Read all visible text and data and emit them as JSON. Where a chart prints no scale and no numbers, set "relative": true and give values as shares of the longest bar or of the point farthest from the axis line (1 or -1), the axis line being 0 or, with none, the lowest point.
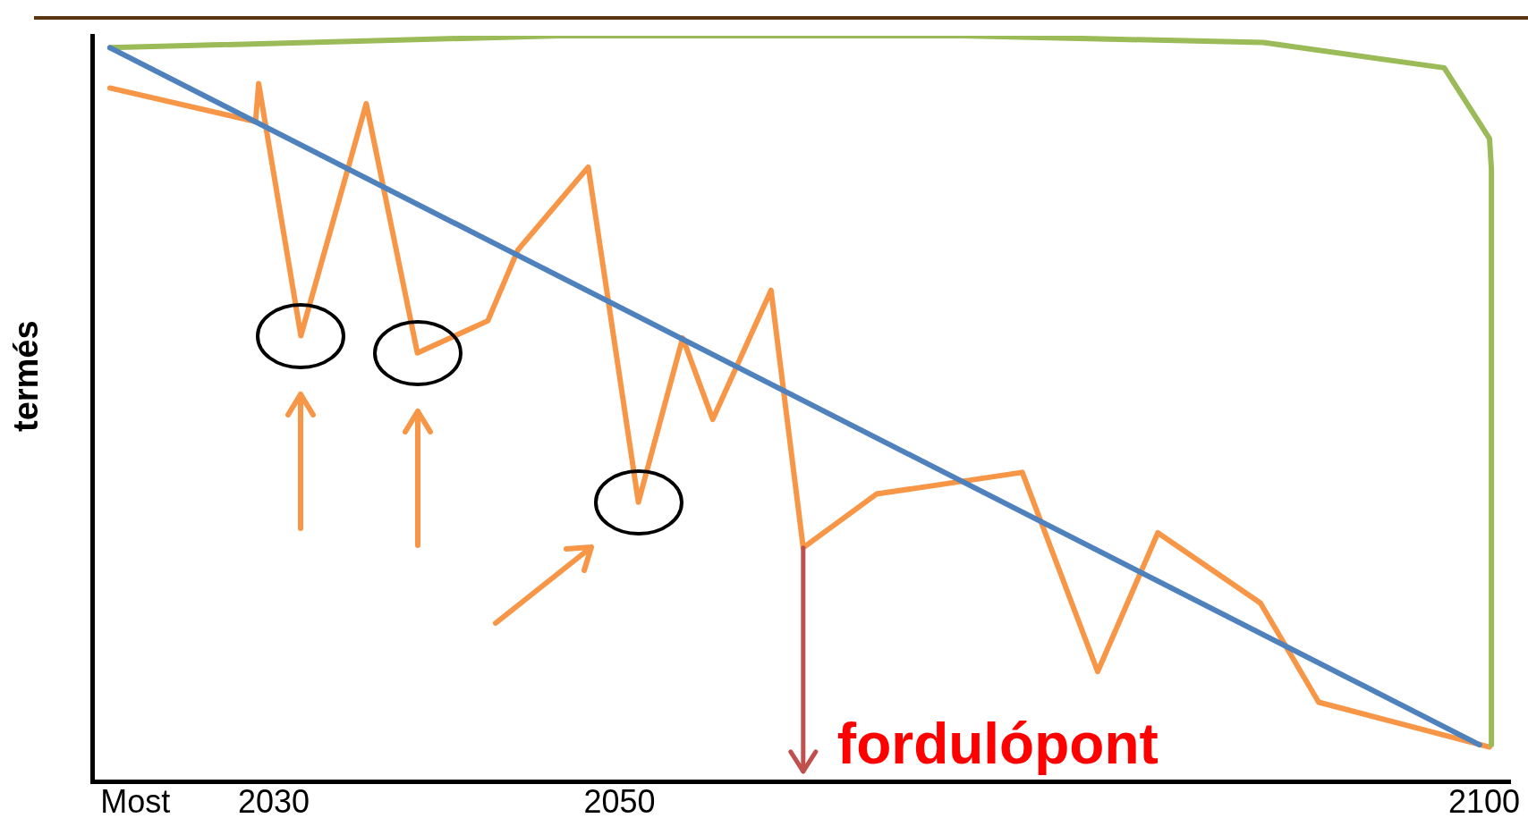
{
  "chart_data": {
    "type": "line",
    "relative": true,
    "ylabel": "termés",
    "xlim": [
      2019.5,
      2101.5
    ],
    "xticks": [
      {
        "value": 2022,
        "label": "Most"
      },
      2030,
      2050,
      2100
    ],
    "grid": false,
    "legend": false,
    "marker": "none",
    "line_style": "solid",
    "series": [
      {
        "color": "#4f81bd",
        "x": [
          2020.53,
          2099.73
        ],
        "values": [
          0.984,
          0.05
        ]
      },
      {
        "color": "#9bbb59",
        "x": [
          2020.53,
          2046.56,
          2069.8,
          2087.23,
          2097.69,
          2100.31,
          2100.42,
          2100.42
        ],
        "values": [
          0.984,
          1.0,
          1.0,
          0.991,
          0.957,
          0.862,
          0.821,
          0.05
        ]
      },
      {
        "color": "#f79646",
        "x": [
          2020.53,
          2028.95,
          2029.13,
          2031.57,
          2035.35,
          2038.31,
          2042.38,
          2044.12,
          2048.19,
          2051.09,
          2053.65,
          2055.39,
          2058.76,
          2060.62,
          2064.86,
          2073.29,
          2077.65,
          2081.13,
          2087.06,
          2090.43,
          2100.31
        ],
        "values": [
          0.93,
          0.885,
          0.936,
          0.598,
          0.909,
          0.575,
          0.618,
          0.713,
          0.824,
          0.375,
          0.595,
          0.486,
          0.659,
          0.314,
          0.386,
          0.415,
          0.148,
          0.334,
          0.24,
          0.107,
          0.047
        ]
      }
    ],
    "ref_lines": [
      {
        "axis": "x",
        "value": 2060.62,
        "label": "fordulópont",
        "color": "#c0504d"
      }
    ]
  }
}
